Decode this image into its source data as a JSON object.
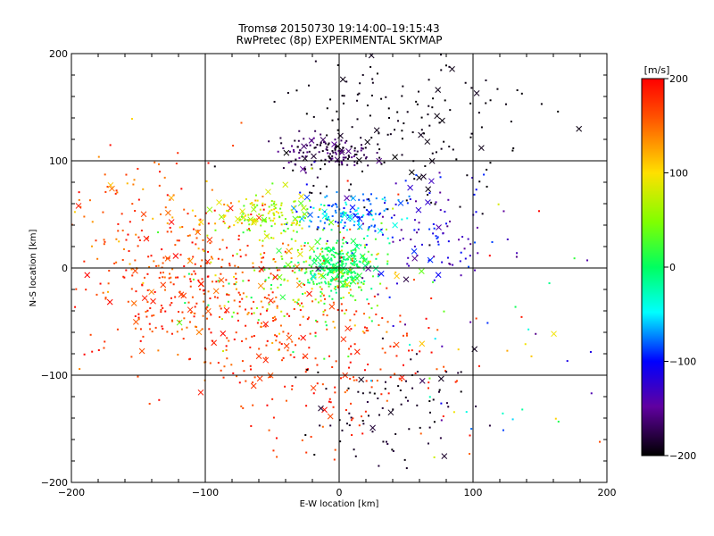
{
  "chart_data": {
    "type": "scatter",
    "title": "Tromsø 20150730 19:14:00–19:15:43",
    "subtitle": "RwPretec (8p) EXPERIMENTAL SKYMAP",
    "xlabel": "E-W location [km]",
    "ylabel": "N-S location [km]",
    "xlim": [
      -200,
      200
    ],
    "ylim": [
      -200,
      200
    ],
    "x_ticks": [
      "−200",
      "−100",
      "0",
      "100",
      "200"
    ],
    "y_ticks": [
      "−200",
      "−100",
      "0",
      "100",
      "200"
    ],
    "grid": true,
    "colorbar": {
      "label": "[m/s]",
      "range": [
        -200,
        200
      ],
      "ticks": [
        "200",
        "100",
        "0",
        "−100",
        "−200"
      ]
    },
    "markers": [
      "dot",
      "x"
    ],
    "clusters": [
      {
        "x": 0,
        "y": 0,
        "sx": 14,
        "sy": 12,
        "n": 280,
        "vmin": -20,
        "vmax": 30
      },
      {
        "x": -30,
        "y": -5,
        "sx": 35,
        "sy": 30,
        "n": 220,
        "vmin": 0,
        "vmax": 140
      },
      {
        "x": -110,
        "y": -15,
        "sx": 40,
        "sy": 40,
        "n": 320,
        "vmin": 140,
        "vmax": 200
      },
      {
        "x": -10,
        "y": -80,
        "sx": 45,
        "sy": 45,
        "n": 240,
        "vmin": 150,
        "vmax": 200
      },
      {
        "x": -10,
        "y": 108,
        "sx": 18,
        "sy": 8,
        "n": 140,
        "vmin": -200,
        "vmax": -150
      },
      {
        "x": 50,
        "y": 130,
        "sx": 50,
        "sy": 40,
        "n": 160,
        "vmin": -200,
        "vmax": -190
      },
      {
        "x": 10,
        "y": 50,
        "sx": 18,
        "sy": 8,
        "n": 120,
        "vmin": -100,
        "vmax": -40
      },
      {
        "x": -55,
        "y": 50,
        "sx": 18,
        "sy": 10,
        "n": 120,
        "vmin": 30,
        "vmax": 110
      },
      {
        "x": 55,
        "y": 30,
        "sx": 35,
        "sy": 30,
        "n": 120,
        "vmin": -160,
        "vmax": -80
      },
      {
        "x": 40,
        "y": -130,
        "sx": 30,
        "sy": 25,
        "n": 80,
        "vmin": -200,
        "vmax": -180
      },
      {
        "x": -150,
        "y": 40,
        "sx": 40,
        "sy": 40,
        "n": 100,
        "vmin": 100,
        "vmax": 200
      },
      {
        "x": 120,
        "y": -60,
        "sx": 60,
        "sy": 60,
        "n": 60,
        "vmin": -200,
        "vmax": 200
      }
    ]
  }
}
